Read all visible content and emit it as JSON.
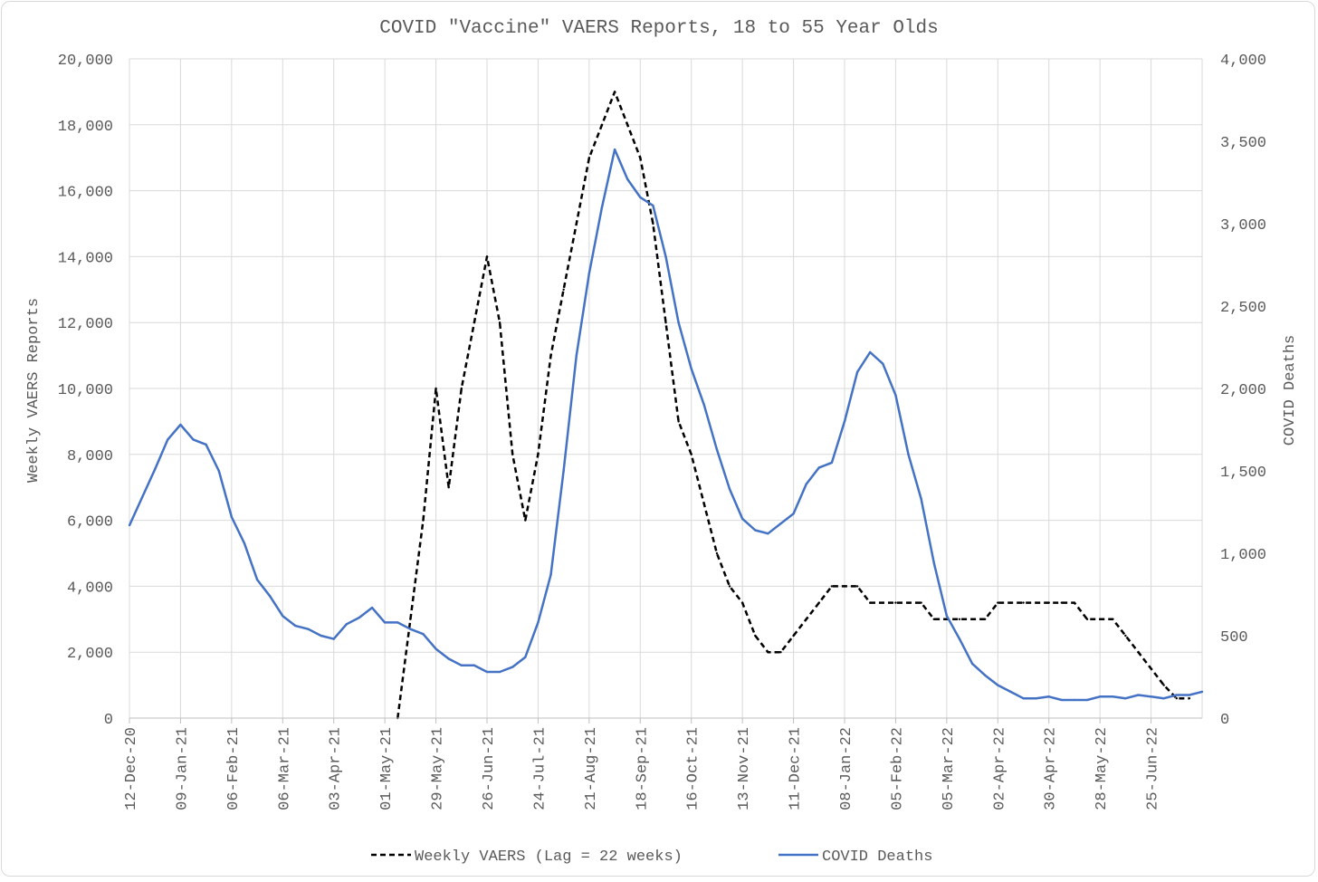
{
  "chart_data": {
    "type": "line",
    "title": "COVID \"Vaccine\" VAERS Reports, 18 to 55 Year Olds",
    "ylabel": "Weekly VAERS Reports",
    "y2label": "COVID Deaths",
    "xlabel": "",
    "ylim": [
      0,
      20000
    ],
    "y2lim": [
      0,
      4000
    ],
    "yticks": [
      "0",
      "2,000",
      "4,000",
      "6,000",
      "8,000",
      "10,000",
      "12,000",
      "14,000",
      "16,000",
      "18,000",
      "20,000"
    ],
    "y2ticks": [
      "0",
      "500",
      "1,000",
      "1,500",
      "2,000",
      "2,500",
      "3,000",
      "3,500",
      "4,000"
    ],
    "xticks": [
      "12-Dec-20",
      "09-Jan-21",
      "06-Feb-21",
      "06-Mar-21",
      "03-Apr-21",
      "01-May-21",
      "29-May-21",
      "26-Jun-21",
      "24-Jul-21",
      "21-Aug-21",
      "18-Sep-21",
      "16-Oct-21",
      "13-Nov-21",
      "11-Dec-21",
      "08-Jan-22",
      "05-Feb-22",
      "05-Mar-22",
      "02-Apr-22",
      "30-Apr-22",
      "28-May-22",
      "25-Jun-22"
    ],
    "grid": true,
    "legend_position": "bottom",
    "series": [
      {
        "name": "Weekly VAERS (Lag = 22 weeks)",
        "axis": "left",
        "color": "#000000",
        "style": "dashed",
        "start_week": 21,
        "values": [
          0,
          3000,
          6000,
          10000,
          7000,
          10000,
          12000,
          14000,
          12000,
          8000,
          6000,
          8000,
          11000,
          13000,
          15000,
          17000,
          18000,
          19000,
          18000,
          17000,
          15000,
          12000,
          9000,
          8000,
          6500,
          5000,
          4000,
          3500,
          2500,
          2000,
          2000,
          2500,
          3000,
          3500,
          4000,
          4000,
          4000,
          3500,
          3500,
          3500,
          3500,
          3500,
          3000,
          3000,
          3000,
          3000,
          3000,
          3500,
          3500,
          3500,
          3500,
          3500,
          3500,
          3500,
          3000,
          3000,
          3000,
          2500,
          2000,
          1500,
          1000,
          600,
          600
        ]
      },
      {
        "name": "COVID Deaths",
        "axis": "right",
        "color": "#4472c4",
        "style": "solid",
        "start_week": 0,
        "values": [
          1170,
          1340,
          1510,
          1690,
          1780,
          1690,
          1660,
          1500,
          1220,
          1060,
          840,
          740,
          620,
          560,
          540,
          500,
          480,
          570,
          610,
          670,
          580,
          580,
          540,
          510,
          420,
          360,
          320,
          320,
          280,
          280,
          310,
          370,
          580,
          870,
          1500,
          2200,
          2700,
          3100,
          3450,
          3270,
          3160,
          3110,
          2800,
          2400,
          2120,
          1900,
          1630,
          1390,
          1210,
          1140,
          1120,
          1180,
          1240,
          1420,
          1520,
          1550,
          1800,
          2100,
          2220,
          2150,
          1960,
          1600,
          1330,
          940,
          620,
          480,
          330,
          260,
          200,
          160,
          120,
          120,
          130,
          110,
          110,
          110,
          130,
          130,
          120,
          140,
          130,
          120,
          140,
          140,
          160
        ]
      }
    ]
  }
}
